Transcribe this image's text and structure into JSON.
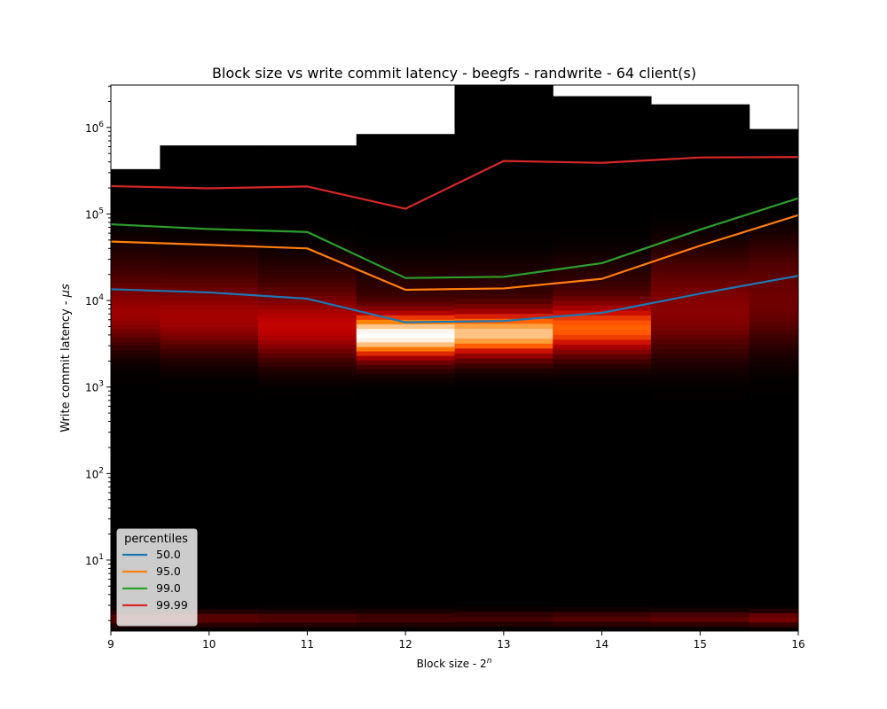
{
  "chart_data": {
    "type": "heatmap",
    "title": "Block size vs write commit latency - beegfs - randwrite - 64 client(s)",
    "xlabel": "Block size - 2",
    "xlabel_superscript": "n",
    "ylabel": "Write commit latency - ",
    "ylabel_unit": "μs",
    "xlim": [
      9,
      16
    ],
    "ylim_log10": [
      0.18,
      6.49
    ],
    "yscale": "log",
    "x_ticks": [
      {
        "value": 9,
        "label": "9"
      },
      {
        "value": 10,
        "label": "10"
      },
      {
        "value": 11,
        "label": "11"
      },
      {
        "value": 12,
        "label": "12"
      },
      {
        "value": 13,
        "label": "13"
      },
      {
        "value": 14,
        "label": "14"
      },
      {
        "value": 15,
        "label": "15"
      },
      {
        "value": 16,
        "label": "16"
      }
    ],
    "y_ticks": [
      {
        "exp": 1,
        "base": "10",
        "sup": "1"
      },
      {
        "exp": 2,
        "base": "10",
        "sup": "2"
      },
      {
        "exp": 3,
        "base": "10",
        "sup": "3"
      },
      {
        "exp": 4,
        "base": "10",
        "sup": "4"
      },
      {
        "exp": 5,
        "base": "10",
        "sup": "5"
      },
      {
        "exp": 6,
        "base": "10",
        "sup": "6"
      }
    ],
    "heatmap_columns": [
      {
        "x0": 9.0,
        "x1": 9.5,
        "max_latency": 330000,
        "band_center_log10": 3.85,
        "band_width": 0.38,
        "band_intensity": 0.4,
        "low_intensity": 0.22
      },
      {
        "x0": 9.5,
        "x1": 10.5,
        "max_latency": 620000,
        "band_center_log10": 3.8,
        "band_width": 0.4,
        "band_intensity": 0.42,
        "low_intensity": 0.25
      },
      {
        "x0": 10.5,
        "x1": 11.5,
        "max_latency": 620000,
        "band_center_log10": 3.7,
        "band_width": 0.38,
        "band_intensity": 0.5,
        "low_intensity": 0.22
      },
      {
        "x0": 11.5,
        "x1": 12.5,
        "max_latency": 840000,
        "band_center_log10": 3.6,
        "band_width": 0.28,
        "band_intensity": 1.0,
        "low_intensity": 0.18
      },
      {
        "x0": 12.5,
        "x1": 13.5,
        "max_latency": 3100000,
        "band_center_log10": 3.62,
        "band_width": 0.28,
        "band_intensity": 0.88,
        "low_intensity": 0.18
      },
      {
        "x0": 13.5,
        "x1": 14.5,
        "max_latency": 2300000,
        "band_center_log10": 3.68,
        "band_width": 0.32,
        "band_intensity": 0.68,
        "low_intensity": 0.22
      },
      {
        "x0": 14.5,
        "x1": 15.5,
        "max_latency": 1850000,
        "band_center_log10": 3.85,
        "band_width": 0.48,
        "band_intensity": 0.35,
        "low_intensity": 0.25
      },
      {
        "x0": 15.5,
        "x1": 16.0,
        "max_latency": 960000,
        "band_center_log10": 3.95,
        "band_width": 0.5,
        "band_intensity": 0.28,
        "low_intensity": 0.32
      }
    ],
    "series": [
      {
        "name": "50.0",
        "color": "#1f77b4",
        "x": [
          9,
          10,
          11,
          12,
          13,
          14,
          15,
          16
        ],
        "values": [
          13500,
          12400,
          10500,
          5600,
          5800,
          7200,
          12000,
          19300
        ]
      },
      {
        "name": "95.0",
        "color": "#ff7f0e",
        "x": [
          9,
          10,
          11,
          12,
          13,
          14,
          15,
          16
        ],
        "values": [
          48000,
          44000,
          40000,
          13300,
          13800,
          17800,
          43000,
          97000
        ]
      },
      {
        "name": "99.0",
        "color": "#2ca02c",
        "x": [
          9,
          10,
          11,
          12,
          13,
          14,
          15,
          16
        ],
        "values": [
          76000,
          67000,
          62000,
          18200,
          18800,
          27000,
          66000,
          152000
        ]
      },
      {
        "name": "99.99",
        "color": "#d62728",
        "x": [
          9,
          10,
          11,
          12,
          13,
          14,
          15,
          16
        ],
        "values": [
          210000,
          198000,
          208000,
          115000,
          410000,
          390000,
          450000,
          455000
        ]
      }
    ],
    "legend": {
      "title": "percentiles",
      "position": "lower-left"
    },
    "grid": false
  }
}
